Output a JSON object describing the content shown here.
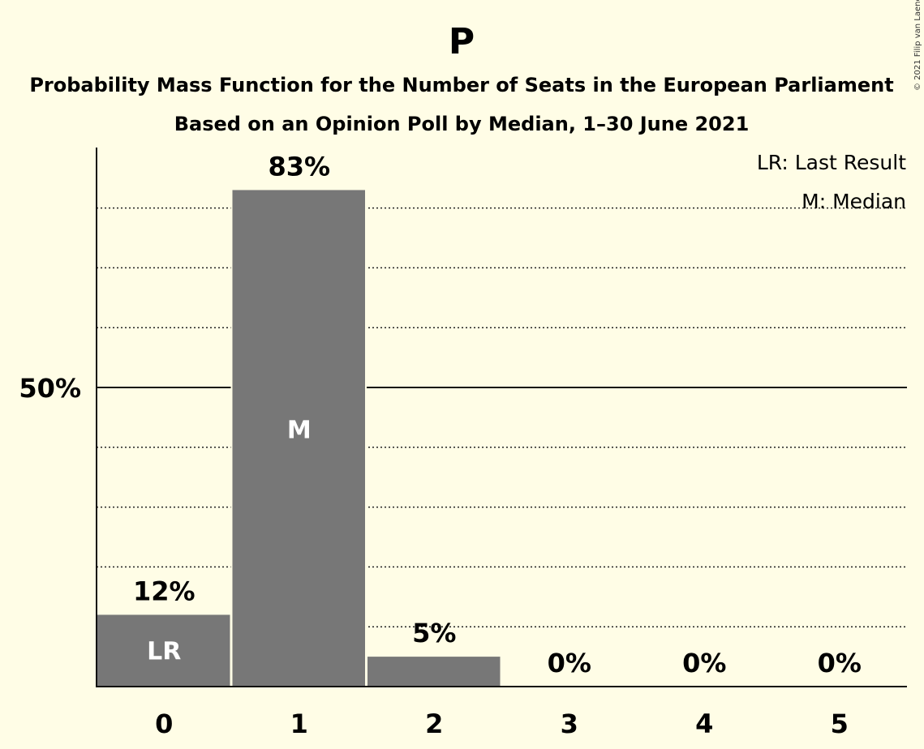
{
  "chart_data": {
    "type": "bar",
    "title": "P",
    "subtitle_line1": "Probability Mass Function for the Number of Seats in the European Parliament",
    "subtitle_line2": "Based on an Opinion Poll by Median, 1–30 June 2021",
    "categories": [
      "0",
      "1",
      "2",
      "3",
      "4",
      "5"
    ],
    "values": [
      12,
      83,
      5,
      0,
      0,
      0
    ],
    "value_labels": [
      "12%",
      "83%",
      "5%",
      "0%",
      "0%",
      "0%"
    ],
    "in_bar_labels": [
      "LR",
      "M",
      "",
      "",
      "",
      ""
    ],
    "ylim": [
      0,
      90
    ],
    "y_ticks": [
      {
        "value": 50,
        "label": "50%"
      }
    ],
    "gridlines_dotted": [
      10,
      20,
      30,
      40,
      60,
      70,
      80
    ],
    "gridline_solid": 50,
    "legend": [
      "LR: Last Result",
      "M: Median"
    ],
    "legend_position": "top-right",
    "bar_color": "#777777",
    "copyright": "© 2021 Filip van Laenen"
  }
}
